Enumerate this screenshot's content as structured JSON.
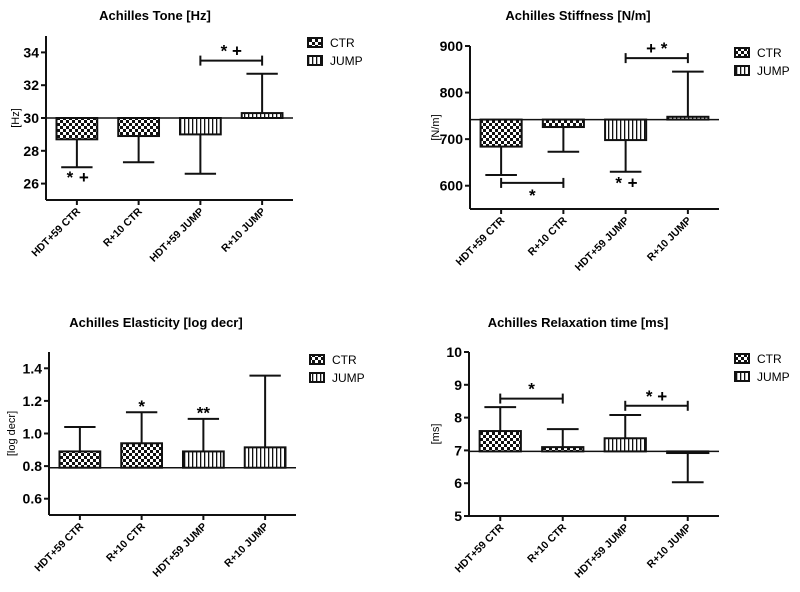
{
  "chart_data": [
    {
      "type": "bar",
      "title": "Achilles Tone [Hz]",
      "ylabel": "[Hz]",
      "xlabel": "",
      "ylim": [
        25,
        35
      ],
      "yticks": [
        26,
        28,
        30,
        32,
        34
      ],
      "baseline": 30,
      "categories": [
        "HDT+59 CTR",
        "R+10 CTR",
        "HDT+59 JUMP",
        "R+10 JUMP"
      ],
      "groups": [
        "CTR",
        "CTR",
        "JUMP",
        "JUMP"
      ],
      "values": [
        28.7,
        28.9,
        29.0,
        30.3
      ],
      "error_ends": [
        27.0,
        27.3,
        26.6,
        32.7
      ],
      "legend": [
        "CTR",
        "JUMP"
      ],
      "legend_position": "top-right",
      "brackets": [
        {
          "from": 2,
          "to": 3,
          "y": 33.5,
          "label": "* +",
          "label_side": "above"
        }
      ],
      "annotations": [
        {
          "category": 0,
          "y": 26.4,
          "text": "*"
        },
        {
          "category": 0,
          "y": 25.9,
          "text": "+"
        }
      ]
    },
    {
      "type": "bar",
      "title": "Achilles Stiffness [N/m]",
      "ylabel": "[N/m]",
      "xlabel": "",
      "ylim": [
        550,
        900
      ],
      "yticks": [
        600,
        700,
        800,
        900
      ],
      "baseline": 742,
      "categories": [
        "HDT+59 CTR",
        "R+10 CTR",
        "HDT+59 JUMP",
        "R+10 JUMP"
      ],
      "groups": [
        "CTR",
        "CTR",
        "JUMP",
        "JUMP"
      ],
      "values": [
        684,
        726,
        698,
        748
      ],
      "error_ends": [
        623,
        673,
        630,
        845
      ],
      "legend": [
        "CTR",
        "JUMP"
      ],
      "legend_position": "top-right",
      "brackets": [
        {
          "from": 0,
          "to": 1,
          "y": 606,
          "label": "*",
          "label_side": "below"
        },
        {
          "from": 2,
          "to": 3,
          "y": 874,
          "label": "+ *",
          "label_side": "above"
        }
      ],
      "annotations": [
        {
          "category": 2,
          "y": 607,
          "text": "*"
        },
        {
          "category": 2,
          "y": 585,
          "text": "+"
        }
      ]
    },
    {
      "type": "bar",
      "title": "Achilles Elasticity [log decr]",
      "ylabel": "[log decr]",
      "xlabel": "",
      "ylim": [
        0.5,
        1.5
      ],
      "yticks": [
        0.6,
        0.8,
        1.0,
        1.2,
        1.4
      ],
      "ytick_labels": [
        "0.6",
        "0.8",
        "1.0",
        "1.2",
        "1.4"
      ],
      "baseline": 0.79,
      "categories": [
        "HDT+59 CTR",
        "R+10 CTR",
        "HDT+59 JUMP",
        "R+10 JUMP"
      ],
      "groups": [
        "CTR",
        "CTR",
        "JUMP",
        "JUMP"
      ],
      "values": [
        0.89,
        0.94,
        0.89,
        0.915
      ],
      "error_ends": [
        1.04,
        1.13,
        1.09,
        1.355
      ],
      "legend": [
        "CTR",
        "JUMP"
      ],
      "legend_position": "top-right",
      "brackets": [],
      "annotations": [
        {
          "category": 1,
          "y": 1.17,
          "text": "*"
        },
        {
          "category": 2,
          "y": 1.13,
          "text": "**"
        }
      ]
    },
    {
      "type": "bar",
      "title": "Achilles Relaxation time [ms]",
      "ylabel": "[ms]",
      "xlabel": "",
      "ylim": [
        5,
        10
      ],
      "yticks": [
        5,
        6,
        7,
        8,
        9,
        10
      ],
      "baseline": 6.97,
      "categories": [
        "HDT+59 CTR",
        "R+10 CTR",
        "HDT+59 JUMP",
        "R+10 JUMP"
      ],
      "groups": [
        "CTR",
        "CTR",
        "JUMP",
        "JUMP"
      ],
      "values": [
        7.59,
        7.1,
        7.37,
        6.92
      ],
      "error_ends": [
        8.32,
        7.65,
        8.08,
        6.03
      ],
      "legend": [
        "CTR",
        "JUMP"
      ],
      "legend_position": "top-right",
      "brackets": [
        {
          "from": 0,
          "to": 1,
          "y": 8.58,
          "label": "*",
          "label_side": "above"
        },
        {
          "from": 2,
          "to": 3,
          "y": 8.36,
          "label": "* +",
          "label_side": "above"
        }
      ],
      "annotations": []
    }
  ]
}
